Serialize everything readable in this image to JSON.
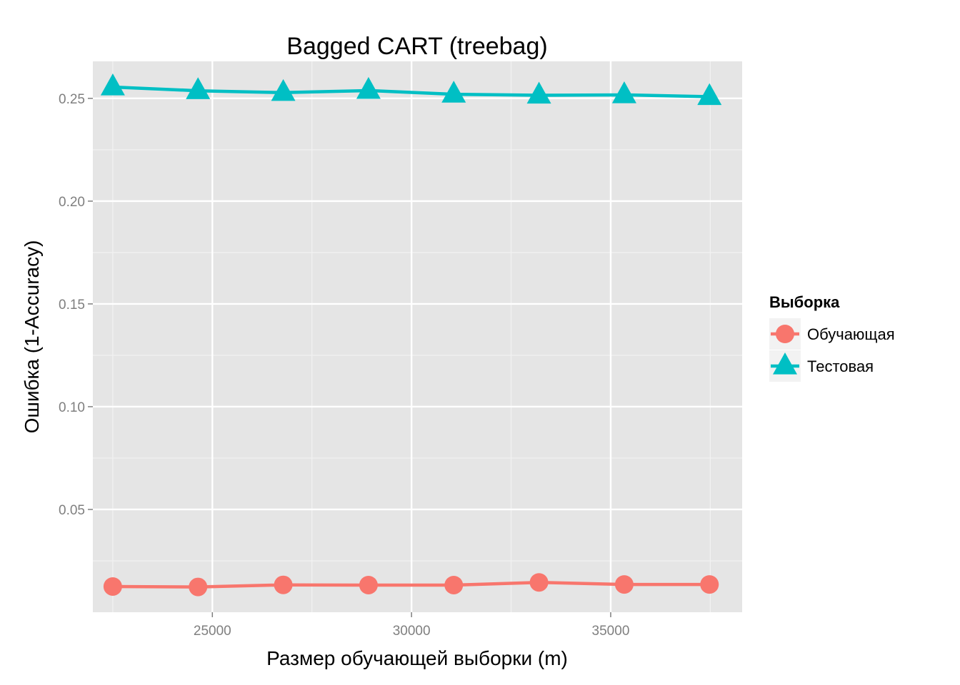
{
  "chart_data": {
    "type": "line",
    "title": "Bagged CART (treebag)",
    "xlabel": "Размер обучающей выборки (m)",
    "ylabel": "Ошибка (1-Accuracy)",
    "x": [
      22500,
      24640,
      26780,
      28920,
      31060,
      33200,
      35340,
      37480
    ],
    "xlim": [
      22000,
      38300
    ],
    "ylim": [
      0.0,
      0.268
    ],
    "xticks": [
      25000,
      30000,
      35000
    ],
    "xtick_labels": [
      "25000",
      "30000",
      "35000"
    ],
    "yticks": [
      0.05,
      0.1,
      0.15,
      0.2,
      0.25
    ],
    "ytick_labels": [
      "0.05",
      "0.10",
      "0.15",
      "0.20",
      "0.25"
    ],
    "grid": true,
    "legend": {
      "title": "Выборка",
      "position": "right"
    },
    "series": [
      {
        "name": "Обучающая",
        "marker": "circle",
        "color": "#F8766D",
        "values": [
          0.0125,
          0.0123,
          0.0133,
          0.0132,
          0.0132,
          0.0145,
          0.0135,
          0.0135
        ]
      },
      {
        "name": "Тестовая",
        "marker": "triangle",
        "color": "#00BFC4",
        "values": [
          0.2555,
          0.2537,
          0.2528,
          0.2538,
          0.252,
          0.2515,
          0.2517,
          0.2508
        ]
      }
    ]
  }
}
